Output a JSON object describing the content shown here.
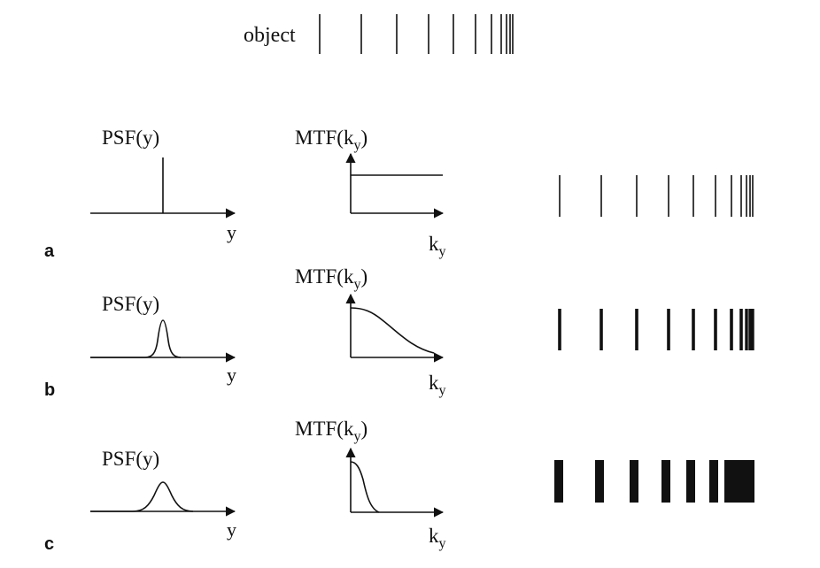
{
  "object_label": "object",
  "psf_label": "PSF(y)",
  "mtf_label_base": "MTF(k",
  "mtf_label_sub": "y",
  "mtf_label_close": ")",
  "y_label": "y",
  "ky_label_base": "k",
  "ky_label_sub": "y",
  "rows": [
    {
      "id": "a",
      "label": "a",
      "psf_width": "delta",
      "mtf": "constant",
      "bar_blur": 0
    },
    {
      "id": "b",
      "label": "b",
      "psf_width": "narrow",
      "mtf": "slow-decay",
      "bar_blur": 1
    },
    {
      "id": "c",
      "label": "c",
      "psf_width": "wide",
      "mtf": "fast-decay",
      "bar_blur": 2
    }
  ],
  "line_color": "#111111"
}
